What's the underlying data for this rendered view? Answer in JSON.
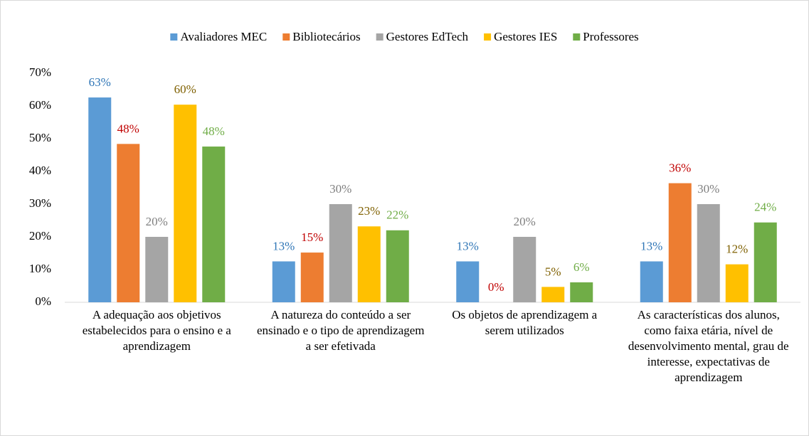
{
  "chart_data": {
    "type": "bar",
    "categories": [
      "A adequação aos objetivos estabelecidos para o ensino e a aprendizagem",
      "A natureza do conteúdo a ser ensinado e o tipo de aprendizagem a ser efetivada",
      "Os objetos de aprendizagem a serem utilizados",
      "As características dos alunos, como faixa etária, nível de desenvolvimento mental, grau de interesse, expectativas de aprendizagem"
    ],
    "series": [
      {
        "name": "Avaliadores MEC",
        "color": "#5b9bd5",
        "label_color": "#2e75b6",
        "values": [
          62.6,
          12.5,
          12.5,
          12.5
        ],
        "value_labels": [
          "63%",
          "13%",
          "13%",
          "13%"
        ]
      },
      {
        "name": "Bibliotecários",
        "color": "#ed7d31",
        "label_color": "#c00000",
        "values": [
          48.4,
          15.2,
          0,
          36.4
        ],
        "value_labels": [
          "48%",
          "15%",
          "0%",
          "36%"
        ]
      },
      {
        "name": "Gestores EdTech",
        "color": "#a5a5a5",
        "label_color": "#7f7f7f",
        "values": [
          20,
          30,
          20,
          30
        ],
        "value_labels": [
          "20%",
          "30%",
          "20%",
          "30%"
        ]
      },
      {
        "name": "Gestores IES",
        "color": "#ffc000",
        "label_color": "#7f6000",
        "values": [
          60.4,
          23.2,
          4.7,
          11.6
        ],
        "value_labels": [
          "60%",
          "23%",
          "5%",
          "12%"
        ]
      },
      {
        "name": "Professores",
        "color": "#70ad47",
        "label_color": "#70ad47",
        "values": [
          47.6,
          22,
          6.1,
          24.4
        ],
        "value_labels": [
          "48%",
          "22%",
          "6%",
          "24%"
        ]
      }
    ],
    "ylim": [
      0,
      70
    ],
    "yticks": [
      {
        "value": 0,
        "label": "0%"
      },
      {
        "value": 10,
        "label": "10%"
      },
      {
        "value": 20,
        "label": "20%"
      },
      {
        "value": 30,
        "label": "30%"
      },
      {
        "value": 40,
        "label": "40%"
      },
      {
        "value": 50,
        "label": "50%"
      },
      {
        "value": 60,
        "label": "60%"
      },
      {
        "value": 70,
        "label": "70%"
      }
    ],
    "grid": false,
    "legend": "top"
  }
}
